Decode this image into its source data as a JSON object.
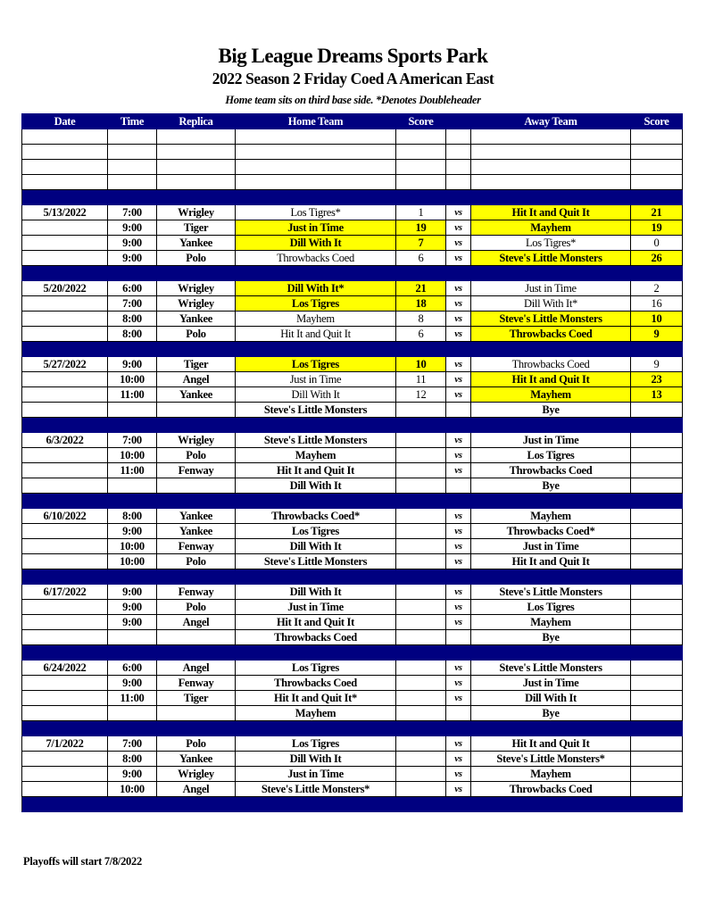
{
  "header": {
    "title": "Big League Dreams Sports Park",
    "subtitle": "2022 Season 2 Friday Coed A American East",
    "note": "Home team sits on third base side.  *Denotes Doubleheader"
  },
  "columns": [
    "Date",
    "Time",
    "Replica",
    "Home Team",
    "Score",
    "",
    "Away Team",
    "Score"
  ],
  "vs_label": "vs",
  "colors": {
    "header_bg": "#000080",
    "winner_highlight": "#ffff00"
  },
  "weeks": [
    {
      "date": "5/13/2022",
      "games": [
        {
          "time": "7:00",
          "replica": "Wrigley",
          "home": "Los Tigres*",
          "home_score": "1",
          "away": "Hit It and Quit It",
          "away_score": "21",
          "winner": "away"
        },
        {
          "time": "9:00",
          "replica": "Tiger",
          "home": "Just in Time",
          "home_score": "19",
          "away": "Mayhem",
          "away_score": "19",
          "winner": "both"
        },
        {
          "time": "9:00",
          "replica": "Yankee",
          "home": "Dill With It",
          "home_score": "7",
          "away": "Los Tigres*",
          "away_score": "0",
          "winner": "home"
        },
        {
          "time": "9:00",
          "replica": "Polo",
          "home": "Throwbacks Coed",
          "home_score": "6",
          "away": "Steve's Little Monsters",
          "away_score": "26",
          "winner": "away"
        }
      ]
    },
    {
      "date": "5/20/2022",
      "games": [
        {
          "time": "6:00",
          "replica": "Wrigley",
          "home": "Dill With It*",
          "home_score": "21",
          "away": "Just in Time",
          "away_score": "2",
          "winner": "home"
        },
        {
          "time": "7:00",
          "replica": "Wrigley",
          "home": "Los Tigres",
          "home_score": "18",
          "away": "Dill With It*",
          "away_score": "16",
          "winner": "home"
        },
        {
          "time": "8:00",
          "replica": "Yankee",
          "home": "Mayhem",
          "home_score": "8",
          "away": "Steve's Little Monsters",
          "away_score": "10",
          "winner": "away"
        },
        {
          "time": "8:00",
          "replica": "Polo",
          "home": "Hit It and Quit It",
          "home_score": "6",
          "away": "Throwbacks Coed",
          "away_score": "9",
          "winner": "away"
        }
      ]
    },
    {
      "date": "5/27/2022",
      "games": [
        {
          "time": "9:00",
          "replica": "Tiger",
          "home": "Los Tigres",
          "home_score": "10",
          "away": "Throwbacks Coed",
          "away_score": "9",
          "winner": "home"
        },
        {
          "time": "10:00",
          "replica": "Angel",
          "home": "Just in Time",
          "home_score": "11",
          "away": "Hit It and Quit It",
          "away_score": "23",
          "winner": "away"
        },
        {
          "time": "11:00",
          "replica": "Yankee",
          "home": "Dill With It",
          "home_score": "12",
          "away": "Mayhem",
          "away_score": "13",
          "winner": "away"
        },
        {
          "time": "",
          "replica": "",
          "home": "Steve's Little Monsters",
          "home_score": "",
          "away": "Bye",
          "away_score": "",
          "bye": true
        }
      ]
    },
    {
      "date": "6/3/2022",
      "games": [
        {
          "time": "7:00",
          "replica": "Wrigley",
          "home": "Steve's Little Monsters",
          "home_score": "",
          "away": "Just in Time",
          "away_score": ""
        },
        {
          "time": "10:00",
          "replica": "Polo",
          "home": "Mayhem",
          "home_score": "",
          "away": "Los Tigres",
          "away_score": ""
        },
        {
          "time": "11:00",
          "replica": "Fenway",
          "home": "Hit It and Quit It",
          "home_score": "",
          "away": "Throwbacks Coed",
          "away_score": ""
        },
        {
          "time": "",
          "replica": "",
          "home": "Dill With It",
          "home_score": "",
          "away": "Bye",
          "away_score": "",
          "bye": true
        }
      ]
    },
    {
      "date": "6/10/2022",
      "games": [
        {
          "time": "8:00",
          "replica": "Yankee",
          "home": "Throwbacks Coed*",
          "home_score": "",
          "away": "Mayhem",
          "away_score": ""
        },
        {
          "time": "9:00",
          "replica": "Yankee",
          "home": "Los Tigres",
          "home_score": "",
          "away": "Throwbacks Coed*",
          "away_score": ""
        },
        {
          "time": "10:00",
          "replica": "Fenway",
          "home": "Dill With It",
          "home_score": "",
          "away": "Just in Time",
          "away_score": ""
        },
        {
          "time": "10:00",
          "replica": "Polo",
          "home": "Steve's Little Monsters",
          "home_score": "",
          "away": "Hit It and Quit It",
          "away_score": ""
        }
      ]
    },
    {
      "date": "6/17/2022",
      "games": [
        {
          "time": "9:00",
          "replica": "Fenway",
          "home": "Dill With It",
          "home_score": "",
          "away": "Steve's Little Monsters",
          "away_score": ""
        },
        {
          "time": "9:00",
          "replica": "Polo",
          "home": "Just in Time",
          "home_score": "",
          "away": "Los Tigres",
          "away_score": ""
        },
        {
          "time": "9:00",
          "replica": "Angel",
          "home": "Hit It and Quit It",
          "home_score": "",
          "away": "Mayhem",
          "away_score": ""
        },
        {
          "time": "",
          "replica": "",
          "home": "Throwbacks Coed",
          "home_score": "",
          "away": "Bye",
          "away_score": "",
          "bye": true
        }
      ]
    },
    {
      "date": "6/24/2022",
      "games": [
        {
          "time": "6:00",
          "replica": "Angel",
          "home": "Los Tigres",
          "home_score": "",
          "away": "Steve's Little Monsters",
          "away_score": ""
        },
        {
          "time": "9:00",
          "replica": "Fenway",
          "home": "Throwbacks Coed",
          "home_score": "",
          "away": "Just in Time",
          "away_score": ""
        },
        {
          "time": "11:00",
          "replica": "Tiger",
          "home": "Hit It and Quit It*",
          "home_score": "",
          "away": "Dill With It",
          "away_score": ""
        },
        {
          "time": "",
          "replica": "",
          "home": "Mayhem",
          "home_score": "",
          "away": "Bye",
          "away_score": "",
          "bye": true
        }
      ]
    },
    {
      "date": "7/1/2022",
      "games": [
        {
          "time": "7:00",
          "replica": "Polo",
          "home": "Los Tigres",
          "home_score": "",
          "away": "Hit It and Quit It",
          "away_score": ""
        },
        {
          "time": "8:00",
          "replica": "Yankee",
          "home": "Dill With It",
          "home_score": "",
          "away": "Steve's Little Monsters*",
          "away_score": ""
        },
        {
          "time": "9:00",
          "replica": "Wrigley",
          "home": "Just in Time",
          "home_score": "",
          "away": "Mayhem",
          "away_score": ""
        },
        {
          "time": "10:00",
          "replica": "Angel",
          "home": "Steve's Little Monsters*",
          "home_score": "",
          "away": "Throwbacks Coed",
          "away_score": ""
        }
      ]
    }
  ],
  "footer": "Playoffs will start 7/8/2022"
}
